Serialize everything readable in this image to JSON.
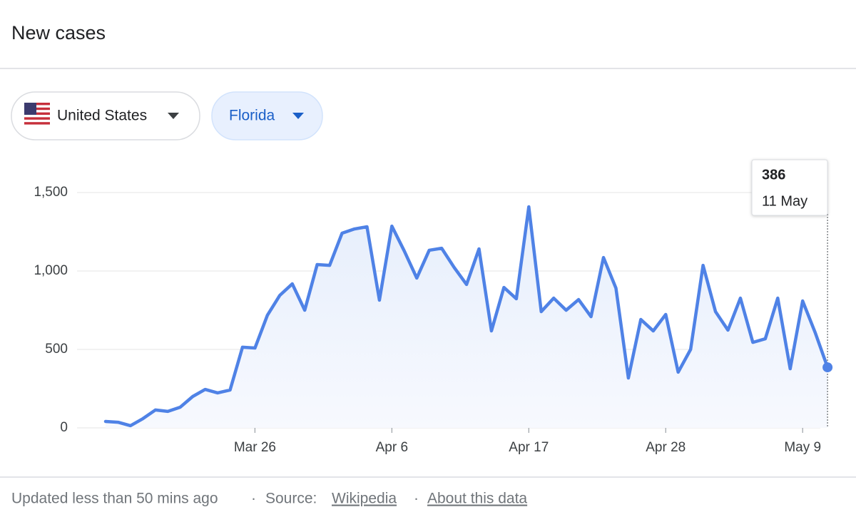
{
  "header": {
    "title": "New cases"
  },
  "filters": {
    "country": "United States",
    "region": "Florida"
  },
  "chart_data": {
    "type": "line",
    "categories": [
      null,
      null,
      null,
      null,
      null,
      null,
      null,
      null,
      null,
      null,
      null,
      null,
      "Mar 26",
      null,
      null,
      null,
      null,
      null,
      null,
      null,
      null,
      null,
      null,
      "Apr 6",
      null,
      null,
      null,
      null,
      null,
      null,
      null,
      null,
      null,
      null,
      "Apr 17",
      null,
      null,
      null,
      null,
      null,
      null,
      null,
      null,
      null,
      null,
      "Apr 28",
      null,
      null,
      null,
      null,
      null,
      null,
      null,
      null,
      null,
      null,
      "May 9",
      null,
      null
    ],
    "values": [
      41,
      36,
      14,
      59,
      114,
      105,
      132,
      200,
      245,
      223,
      241,
      514,
      509,
      718,
      845,
      918,
      750,
      1041,
      1036,
      1241,
      1268,
      1282,
      814,
      1286,
      1127,
      955,
      1132,
      1145,
      1023,
      914,
      1141,
      618,
      895,
      823,
      1409,
      741,
      827,
      750,
      818,
      709,
      1086,
      891,
      318,
      691,
      618,
      723,
      355,
      500,
      1036,
      741,
      623,
      827,
      545,
      568,
      827,
      377,
      809,
      609,
      386
    ],
    "color": "#4f82e6",
    "ylim": [
      0,
      1500
    ],
    "yticks": [
      0,
      500,
      {
        "value": 1000,
        "label": "1,000"
      },
      {
        "value": 1500,
        "label": "1,500"
      }
    ],
    "grid": true,
    "tooltip": {
      "date": "11 May"
    }
  },
  "footer": {
    "updated": "Updated less than 50 mins ago",
    "separator": "·",
    "source_label": "Source:",
    "source_link": "Wikipedia",
    "about_link": "About this data"
  }
}
